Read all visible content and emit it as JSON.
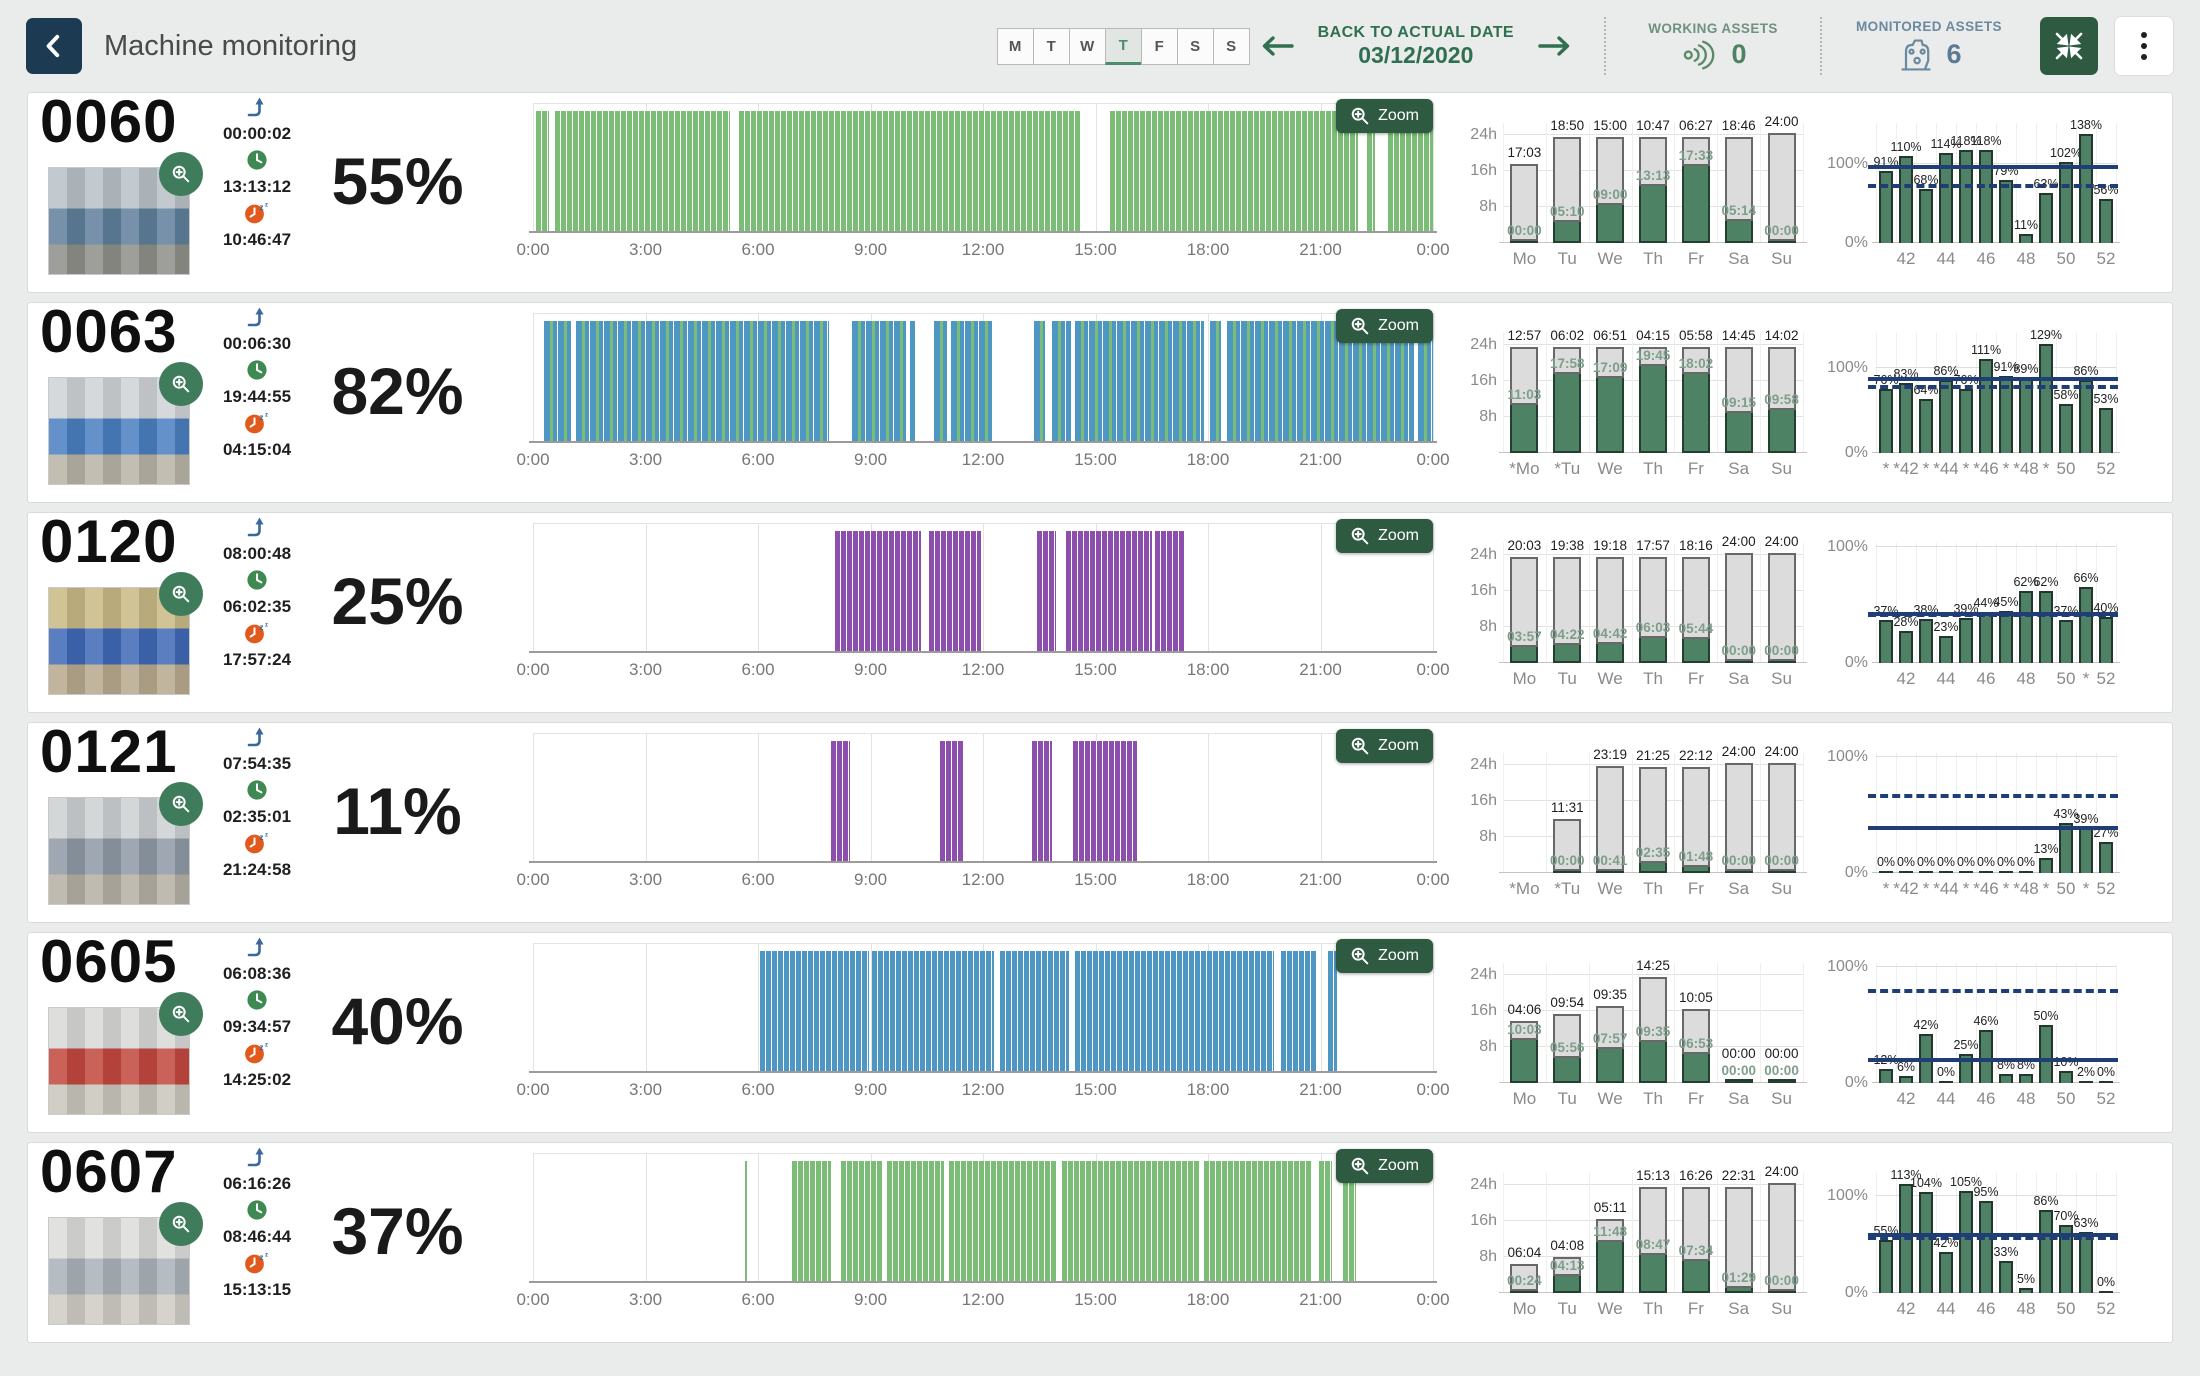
{
  "header": {
    "title": "Machine monitoring",
    "days": [
      "M",
      "T",
      "W",
      "T",
      "F",
      "S",
      "S"
    ],
    "selected_day_index": 3,
    "back_label": "BACK TO ACTUAL DATE",
    "date": "03/12/2020",
    "working_assets_label": "WORKING ASSETS",
    "working_assets_value": "0",
    "monitored_assets_label": "MONITORED ASSETS",
    "monitored_assets_value": "6"
  },
  "icons": [
    "chevron-left-icon",
    "arrow-left-icon",
    "arrow-right-icon",
    "signal-icon",
    "machine-icon",
    "collapse-icon",
    "kebab-icon",
    "magnifier-plus-icon",
    "turn-up-arrow-icon",
    "clock-icon",
    "sleep-clock-icon"
  ],
  "zoom_button_label": "Zoom",
  "axes": {
    "timeline_ticks": [
      "0:00",
      "3:00",
      "6:00",
      "9:00",
      "12:00",
      "15:00",
      "18:00",
      "21:00",
      "0:00"
    ],
    "daily_yticks": [
      "24h",
      "16h",
      "8h"
    ],
    "weekly_ymax_label": "100%",
    "weekly_ymin_label": "0%"
  },
  "colors": {
    "green_bar": "#7bbd76",
    "blue_bar": "#4f97c3",
    "purple_bar": "#8c4fae",
    "daily_work": "#4d8264",
    "daily_idle": "#dcdcdc",
    "weekly_bar": "#4e8165",
    "target_line": "#1e3e75",
    "accent_green": "#2f7050",
    "header_navy": "#1c3b52",
    "button_green": "#2e5a41"
  },
  "rows": [
    {
      "id": "0060",
      "percent": "55%",
      "arrow_time": "00:00:02",
      "work_time": "13:13:12",
      "idle_time": "10:46:47",
      "timeline": {
        "palette": [
          "green_bar"
        ],
        "segments": [
          [
            0.08,
            0.42
          ],
          [
            0.58,
            5.25
          ],
          [
            5.5,
            14.6
          ],
          [
            15.4,
            22.0
          ],
          [
            22.25,
            22.45
          ],
          [
            22.8,
            24
          ]
        ]
      },
      "daily": {
        "days": [
          "Mo",
          "Tu",
          "We",
          "Th",
          "Fr",
          "Sa",
          "Su"
        ],
        "idle": [
          "17:03",
          "18:50",
          "15:00",
          "10:47",
          "06:27",
          "18:46",
          "24:00"
        ],
        "work": [
          "00:00",
          "05:10",
          "09:00",
          "13:13",
          "17:33",
          "05:14",
          "00:00"
        ]
      },
      "weekly": {
        "labels": [
          "",
          "42",
          "",
          "44",
          "",
          "46",
          "",
          "48",
          "",
          "50",
          "",
          "52"
        ],
        "values": [
          91,
          110,
          68,
          114,
          118,
          118,
          79,
          11,
          63,
          102,
          138,
          56
        ],
        "solid_line": 93,
        "dashed_line": 70
      },
      "photo": [
        "#b9c1c7",
        "#5f7f9b",
        "#8e8f89"
      ]
    },
    {
      "id": "0063",
      "percent": "82%",
      "arrow_time": "00:06:30",
      "work_time": "19:44:55",
      "idle_time": "04:15:04",
      "timeline": {
        "palette": [
          "blue_bar",
          "green_bar"
        ],
        "segments": [
          [
            0.3,
            1.05
          ],
          [
            1.15,
            7.9
          ],
          [
            8.5,
            9.95
          ],
          [
            10.05,
            10.2
          ],
          [
            10.7,
            11.05
          ],
          [
            11.15,
            12.25
          ],
          [
            13.35,
            13.65
          ],
          [
            13.85,
            14.35
          ],
          [
            14.45,
            17.9
          ],
          [
            18.05,
            18.35
          ],
          [
            18.5,
            23.5
          ],
          [
            23.6,
            24
          ]
        ]
      },
      "daily": {
        "days": [
          "*Mo",
          "*Tu",
          "We",
          "Th",
          "Fr",
          "Sa",
          "Su"
        ],
        "idle": [
          "12:57",
          "06:02",
          "06:51",
          "04:15",
          "05:58",
          "14:45",
          "14:02"
        ],
        "work": [
          "11:03",
          "17:58",
          "17:09",
          "19:45",
          "18:02",
          "09:15",
          "09:58"
        ]
      },
      "weekly": {
        "labels": [
          "*",
          "*42",
          "*",
          "*44",
          "*",
          "*46",
          "*",
          "*48",
          "*",
          "50",
          "",
          "52"
        ],
        "values": [
          76,
          83,
          64,
          86,
          76,
          111,
          91,
          89,
          129,
          58,
          86,
          53
        ],
        "solid_line": 85,
        "dashed_line": 75
      },
      "photo": [
        "#cfd3d6",
        "#4a7fc0",
        "#b9b3a6"
      ]
    },
    {
      "id": "0120",
      "percent": "25%",
      "arrow_time": "08:00:48",
      "work_time": "06:02:35",
      "idle_time": "17:57:24",
      "timeline": {
        "palette": [
          "purple_bar"
        ],
        "segments": [
          [
            8.05,
            10.35
          ],
          [
            10.55,
            11.95
          ],
          [
            13.45,
            13.95
          ],
          [
            14.2,
            16.5
          ],
          [
            16.6,
            17.4
          ]
        ]
      },
      "daily": {
        "days": [
          "Mo",
          "Tu",
          "We",
          "Th",
          "Fr",
          "Sa",
          "Su"
        ],
        "idle": [
          "20:03",
          "19:38",
          "19:18",
          "17:57",
          "18:16",
          "24:00",
          "24:00"
        ],
        "work": [
          "03:57",
          "04:22",
          "04:42",
          "06:03",
          "05:44",
          "00:00",
          "00:00"
        ]
      },
      "weekly": {
        "labels": [
          "",
          "42",
          "",
          "44",
          "",
          "46",
          "",
          "48",
          "",
          "50",
          "*",
          "52"
        ],
        "values": [
          37,
          28,
          38,
          23,
          39,
          44,
          45,
          62,
          62,
          37,
          66,
          40
        ],
        "solid_line": 41,
        "dashed_line": 40
      },
      "photo": [
        "#c8b985",
        "#3f69b5",
        "#b7a98e"
      ]
    },
    {
      "id": "0121",
      "percent": "11%",
      "arrow_time": "07:54:35",
      "work_time": "02:35:01",
      "idle_time": "21:24:58",
      "timeline": {
        "palette": [
          "purple_bar"
        ],
        "segments": [
          [
            7.95,
            8.45
          ],
          [
            10.85,
            11.5
          ],
          [
            13.3,
            13.85
          ],
          [
            14.4,
            16.1
          ]
        ]
      },
      "daily": {
        "days": [
          "*Mo",
          "*Tu",
          "We",
          "Th",
          "Fr",
          "Sa",
          "Su"
        ],
        "idle": [
          null,
          "11:31",
          "23:19",
          "21:25",
          "22:12",
          "24:00",
          "24:00"
        ],
        "work": [
          null,
          "00:00",
          "00:41",
          "02:35",
          "01:48",
          "00:00",
          "00:00"
        ]
      },
      "weekly": {
        "labels": [
          "*",
          "*42",
          "*",
          "*44",
          "*",
          "*46",
          "*",
          "*48",
          "*",
          "50",
          "*",
          "52"
        ],
        "values": [
          0,
          0,
          0,
          0,
          0,
          0,
          0,
          0,
          13,
          43,
          39,
          27
        ],
        "solid_line": 37,
        "dashed_line": 65
      },
      "photo": [
        "#cdd0d2",
        "#8f9aa6",
        "#b5b0a4"
      ]
    },
    {
      "id": "0605",
      "percent": "40%",
      "arrow_time": "06:08:36",
      "work_time": "09:34:57",
      "idle_time": "14:25:02",
      "timeline": {
        "palette": [
          "blue_bar"
        ],
        "segments": [
          [
            6.05,
            8.95
          ],
          [
            9.05,
            12.3
          ],
          [
            12.45,
            14.3
          ],
          [
            14.45,
            19.75
          ],
          [
            19.95,
            20.9
          ],
          [
            21.2,
            21.45
          ]
        ]
      },
      "daily": {
        "days": [
          "Mo",
          "Tu",
          "We",
          "Th",
          "Fr",
          "Sa",
          "Su"
        ],
        "idle": [
          "04:06",
          "09:54",
          "09:35",
          "14:25",
          "10:05",
          "00:00",
          "00:00"
        ],
        "work": [
          "10:03",
          "05:56",
          "07:57",
          "09:35",
          "06:53",
          "00:00",
          "00:00"
        ]
      },
      "weekly": {
        "labels": [
          "",
          "42",
          "",
          "44",
          "",
          "46",
          "",
          "48",
          "",
          "50",
          "",
          "52"
        ],
        "values": [
          12,
          6,
          42,
          0,
          25,
          46,
          8,
          8,
          50,
          10,
          2,
          0
        ],
        "solid_line": 18,
        "dashed_line": 78
      },
      "photo": [
        "#d8d8d6",
        "#c2483f",
        "#c9c6bd"
      ]
    },
    {
      "id": "0607",
      "percent": "37%",
      "arrow_time": "06:16:26",
      "work_time": "08:46:44",
      "idle_time": "15:13:15",
      "timeline": {
        "palette": [
          "green_bar"
        ],
        "segments": [
          [
            5.65,
            5.72
          ],
          [
            6.9,
            7.95
          ],
          [
            8.2,
            9.3
          ],
          [
            9.45,
            10.95
          ],
          [
            11.1,
            13.95
          ],
          [
            14.1,
            17.75
          ],
          [
            17.9,
            20.75
          ],
          [
            20.95,
            21.3
          ],
          [
            21.6,
            21.95
          ]
        ]
      },
      "daily": {
        "days": [
          "Mo",
          "Tu",
          "We",
          "Th",
          "Fr",
          "Sa",
          "Su"
        ],
        "idle": [
          "06:04",
          "04:08",
          "05:11",
          "15:13",
          "16:26",
          "22:31",
          "24:00"
        ],
        "work": [
          "00:24",
          "04:13",
          "11:48",
          "08:47",
          "07:34",
          "01:29",
          "00:00"
        ]
      },
      "weekly": {
        "labels": [
          "",
          "42",
          "",
          "44",
          "",
          "46",
          "",
          "48",
          "",
          "50",
          "",
          "52"
        ],
        "values": [
          55,
          113,
          104,
          42,
          105,
          95,
          33,
          5,
          86,
          70,
          63,
          0
        ],
        "solid_line": 58,
        "dashed_line": 55
      },
      "photo": [
        "#dcdcda",
        "#aab2b8",
        "#cfccc4"
      ]
    }
  ]
}
